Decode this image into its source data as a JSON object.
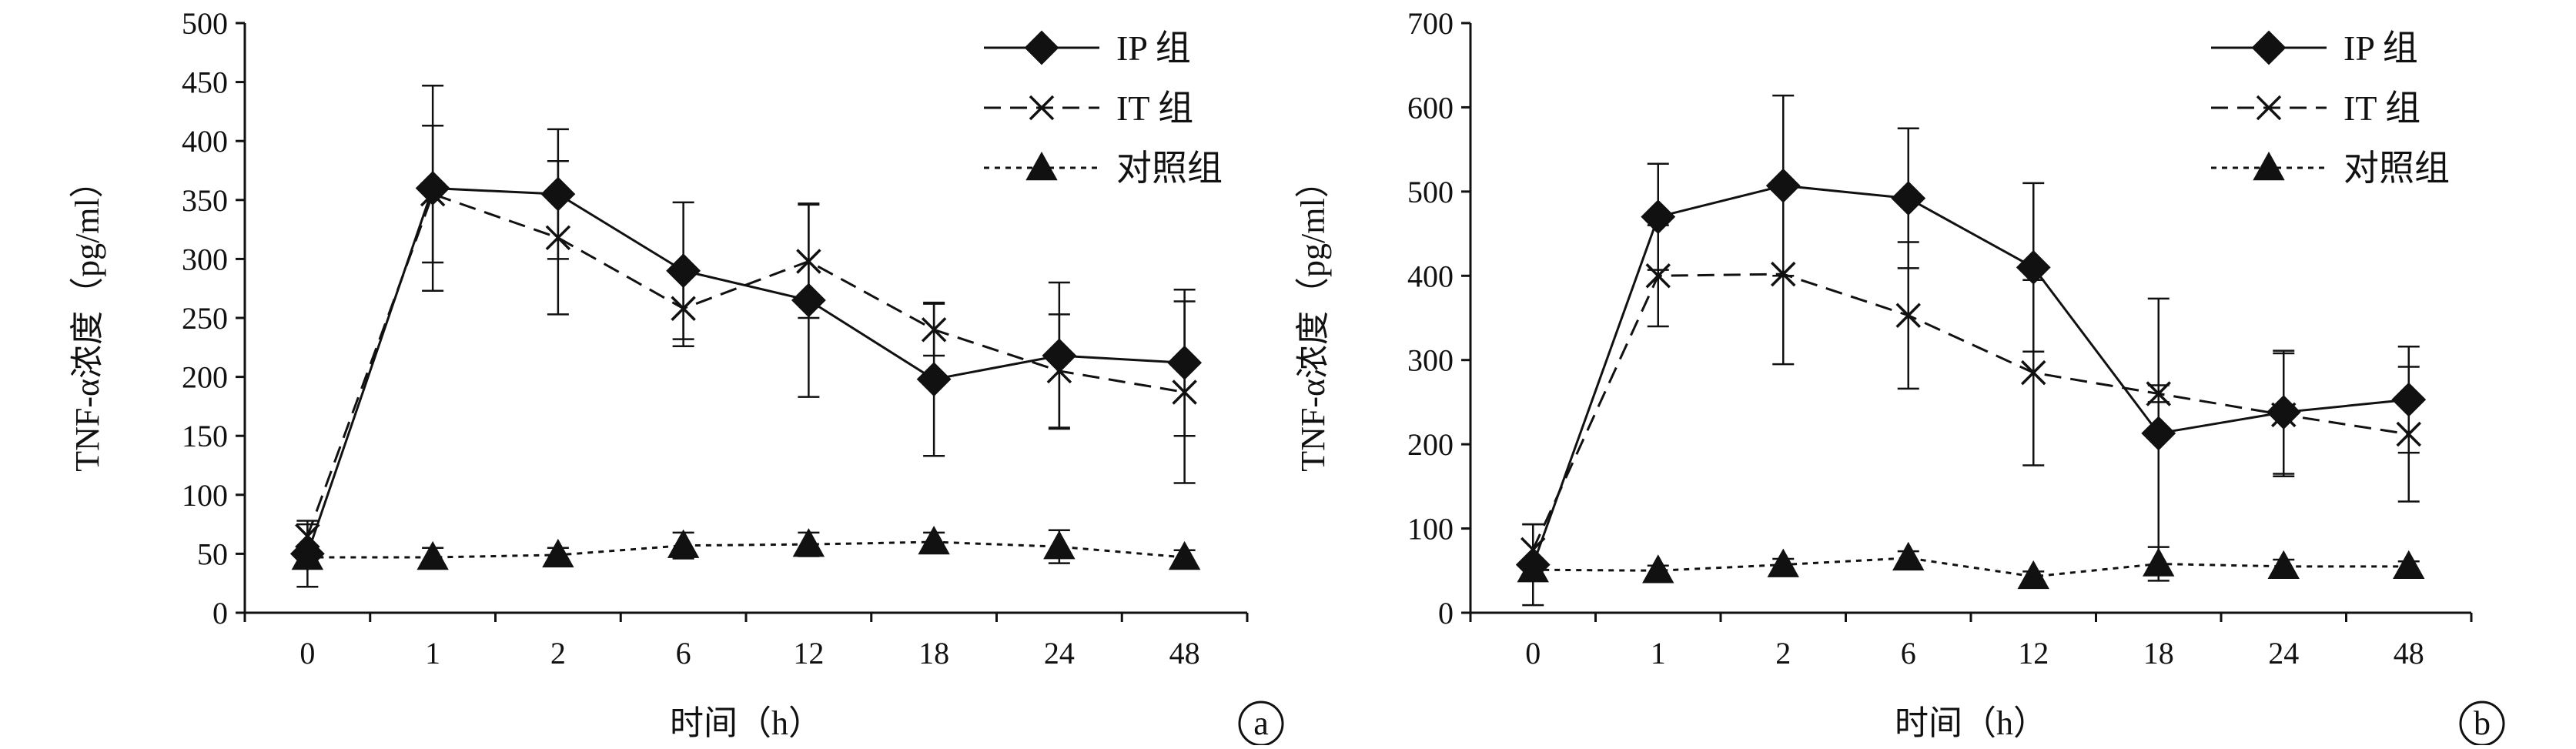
{
  "chart_data": [
    {
      "type": "line",
      "panel": "a",
      "xlabel": "时间（h）",
      "ylabel": "TNF-α浓度（pg/ml）",
      "categories": [
        "0",
        "1",
        "2",
        "6",
        "12",
        "18",
        "24",
        "48"
      ],
      "ylim": [
        0,
        500
      ],
      "yticks": [
        "0",
        "50",
        "100",
        "150",
        "200",
        "250",
        "300",
        "350",
        "400",
        "450",
        "500"
      ],
      "legend_position": "top-right",
      "grid": false,
      "series": [
        {
          "name": "IP 组",
          "marker": "diamond",
          "line": "solid",
          "values": [
            50,
            360,
            355,
            290,
            265,
            198,
            218,
            212
          ],
          "errors": [
            28,
            87,
            55,
            58,
            82,
            65,
            62,
            62
          ]
        },
        {
          "name": "IT 组",
          "marker": "x",
          "line": "dashed",
          "values": [
            65,
            355,
            318,
            258,
            298,
            240,
            205,
            187
          ],
          "errors": [
            10,
            58,
            65,
            32,
            48,
            22,
            48,
            77
          ]
        },
        {
          "name": "对照组",
          "marker": "triangle",
          "line": "dotted",
          "values": [
            47,
            47,
            49,
            57,
            58,
            60,
            56,
            47
          ],
          "errors": [
            5,
            8,
            6,
            11,
            10,
            8,
            14,
            6
          ]
        }
      ]
    },
    {
      "type": "line",
      "panel": "b",
      "xlabel": "时间（h）",
      "ylabel": "TNF-α浓度（pg/ml）",
      "categories": [
        "0",
        "1",
        "2",
        "6",
        "12",
        "18",
        "24",
        "48"
      ],
      "ylim": [
        0,
        700
      ],
      "yticks": [
        "0",
        "100",
        "200",
        "300",
        "400",
        "500",
        "600",
        "700"
      ],
      "legend_position": "top-right",
      "grid": false,
      "series": [
        {
          "name": "IP 组",
          "marker": "diamond",
          "line": "solid",
          "values": [
            57,
            470,
            507,
            492,
            410,
            213,
            238,
            253
          ],
          "errors": [
            48,
            63,
            107,
            83,
            100,
            160,
            73,
            63
          ]
        },
        {
          "name": "IT 组",
          "marker": "x",
          "line": "dashed",
          "values": [
            75,
            400,
            402,
            353,
            285,
            260,
            235,
            212
          ],
          "errors": [
            30,
            60,
            107,
            87,
            110,
            10,
            73,
            80
          ]
        },
        {
          "name": "对照组",
          "marker": "triangle",
          "line": "dotted",
          "values": [
            51,
            50,
            57,
            65,
            43,
            58,
            55,
            55
          ],
          "errors": [
            8,
            6,
            7,
            8,
            6,
            20,
            8,
            6
          ]
        }
      ]
    }
  ]
}
